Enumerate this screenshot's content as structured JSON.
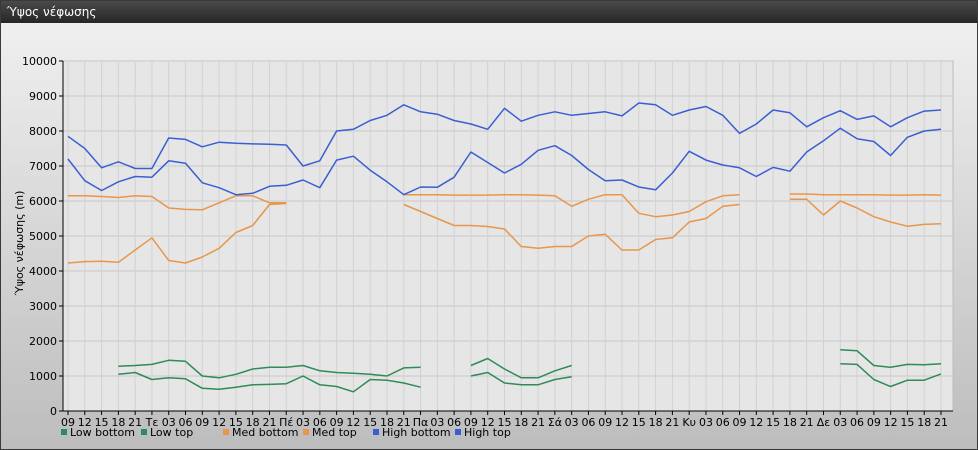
{
  "window": {
    "title": "Ύψος νέφωσης"
  },
  "chart_data": {
    "type": "line",
    "title": "",
    "xlabel": "",
    "ylabel": "Ύψος νέφωσης (m)",
    "ylim": [
      0,
      10000
    ],
    "yticks": [
      0,
      1000,
      2000,
      3000,
      4000,
      5000,
      6000,
      7000,
      8000,
      9000,
      10000
    ],
    "grid": true,
    "legend_position": "bottom-left",
    "categories": [
      "09",
      "12",
      "15",
      "18",
      "21",
      "Τε",
      "03",
      "06",
      "09",
      "12",
      "15",
      "18",
      "21",
      "Πέ",
      "03",
      "06",
      "09",
      "12",
      "15",
      "18",
      "21",
      "Πα",
      "03",
      "06",
      "09",
      "12",
      "15",
      "18",
      "21",
      "Σά",
      "03",
      "06",
      "09",
      "12",
      "15",
      "18",
      "21",
      "Κυ",
      "03",
      "06",
      "09",
      "12",
      "15",
      "18",
      "21",
      "Δε",
      "03",
      "06",
      "09",
      "12",
      "15",
      "18",
      "21"
    ],
    "series": [
      {
        "name": "Low bottom",
        "color": "#2f8b57",
        "values": [
          null,
          null,
          null,
          1050,
          1100,
          900,
          950,
          920,
          650,
          620,
          680,
          750,
          760,
          780,
          1000,
          750,
          700,
          550,
          900,
          880,
          800,
          680,
          null,
          null,
          1000,
          1100,
          800,
          750,
          750,
          900,
          980,
          null,
          null,
          null,
          null,
          null,
          null,
          null,
          null,
          null,
          null,
          null,
          null,
          null,
          null,
          null,
          1350,
          1330,
          900,
          700,
          880,
          880,
          1060
        ]
      },
      {
        "name": "Low top",
        "color": "#2f8b57",
        "values": [
          null,
          null,
          null,
          1280,
          1300,
          1330,
          1450,
          1420,
          1000,
          950,
          1050,
          1200,
          1250,
          1250,
          1300,
          1150,
          1100,
          1080,
          1050,
          1000,
          1230,
          1250,
          null,
          null,
          1300,
          1500,
          1200,
          950,
          950,
          1150,
          1300,
          null,
          null,
          null,
          null,
          null,
          null,
          null,
          null,
          null,
          null,
          null,
          null,
          null,
          null,
          null,
          1750,
          1720,
          1300,
          1250,
          1330,
          1320,
          1350
        ]
      },
      {
        "name": "Med bottom",
        "color": "#e8964a",
        "values": [
          4230,
          4270,
          4280,
          4250,
          4600,
          4950,
          4300,
          4230,
          4400,
          4650,
          5100,
          5300,
          5900,
          5930,
          null,
          null,
          null,
          null,
          null,
          null,
          5900,
          5700,
          5500,
          5300,
          5300,
          5270,
          5200,
          4700,
          4650,
          4700,
          4700,
          5000,
          5050,
          4600,
          4600,
          4900,
          4950,
          5400,
          5500,
          5850,
          5900,
          null,
          null,
          6050,
          6050,
          5600,
          6000,
          5800,
          5550,
          5400,
          5280,
          5330,
          5350
        ]
      },
      {
        "name": "Med top",
        "color": "#e8964a",
        "values": [
          6150,
          6150,
          6130,
          6100,
          6150,
          6130,
          5800,
          5760,
          5750,
          5950,
          6150,
          6150,
          5950,
          5950,
          null,
          null,
          null,
          null,
          null,
          null,
          6180,
          6180,
          6180,
          6170,
          6170,
          6170,
          6180,
          6180,
          6170,
          6150,
          5850,
          6050,
          6180,
          6180,
          5650,
          5550,
          5600,
          5700,
          5980,
          6150,
          6180,
          null,
          null,
          6200,
          6200,
          6180,
          6180,
          6180,
          6180,
          6170,
          6170,
          6180,
          6170
        ]
      },
      {
        "name": "High bottom",
        "color": "#3a5fd2",
        "values": [
          7200,
          6580,
          6300,
          6550,
          6700,
          6680,
          7150,
          7080,
          6520,
          6380,
          6180,
          6220,
          6420,
          6450,
          6600,
          6380,
          7170,
          7280,
          6880,
          6550,
          6180,
          6400,
          6390,
          6680,
          7400,
          7100,
          6800,
          7050,
          7450,
          7580,
          7300,
          6900,
          6580,
          6600,
          6400,
          6320,
          6800,
          7420,
          7170,
          7030,
          6950,
          6700,
          6960,
          6850,
          7400,
          7720,
          8080,
          7780,
          7700,
          7300,
          7820,
          8000,
          8050
        ]
      },
      {
        "name": "High top",
        "color": "#3a5fd2",
        "values": [
          7850,
          7500,
          6950,
          7120,
          6930,
          6930,
          7800,
          7760,
          7550,
          7680,
          7650,
          7630,
          7620,
          7600,
          7000,
          7150,
          8000,
          8050,
          8300,
          8450,
          8750,
          8550,
          8480,
          8300,
          8200,
          8050,
          8650,
          8280,
          8450,
          8550,
          8450,
          8500,
          8550,
          8430,
          8800,
          8750,
          8450,
          8600,
          8700,
          8450,
          7930,
          8200,
          8600,
          8520,
          8120,
          8380,
          8580,
          8330,
          8430,
          8120,
          8380,
          8570,
          8600
        ]
      }
    ]
  }
}
